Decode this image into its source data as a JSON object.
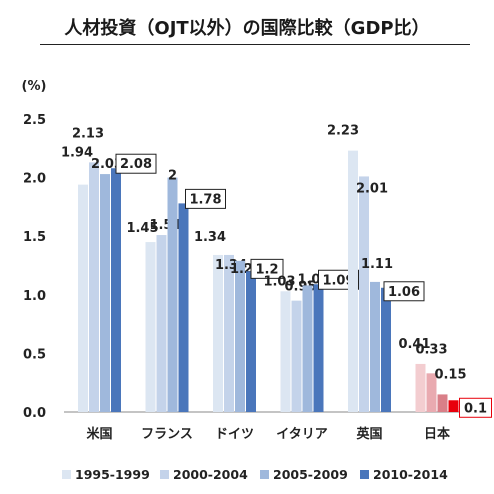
{
  "chart_data": {
    "type": "bar",
    "title": "人材投資（OJT以外）の国際比較（GDP比）",
    "ylabel": "(%)",
    "xlabel": "",
    "ylim": [
      0,
      2.5
    ],
    "yticks": [
      "0.0",
      "0.5",
      "1.0",
      "1.5",
      "2.0",
      "2.5"
    ],
    "grid": false,
    "legend_position": "bottom",
    "categories": [
      "米国",
      "フランス",
      "ドイツ",
      "イタリア",
      "英国",
      "日本"
    ],
    "series": [
      {
        "name": "1995-1999",
        "values": [
          1.94,
          1.45,
          1.34,
          1.03,
          2.23,
          0.41
        ]
      },
      {
        "name": "2000-2004",
        "values": [
          2.13,
          1.51,
          1.34,
          0.95,
          2.01,
          0.33
        ]
      },
      {
        "name": "2005-2009",
        "values": [
          2.03,
          2.0,
          1.29,
          1.08,
          1.11,
          0.15
        ]
      },
      {
        "name": "2010-2014",
        "values": [
          2.08,
          1.78,
          1.2,
          1.09,
          1.06,
          0.1
        ]
      }
    ],
    "labels": [
      [
        "1.94",
        "2.13",
        "2.03",
        "2.08"
      ],
      [
        "1.45",
        "1.51",
        "2",
        "1.78"
      ],
      [
        "1.34",
        "1.34",
        "1.29",
        "1.2"
      ],
      [
        "1.03",
        "0.95",
        "1.08",
        "1.09"
      ],
      [
        "2.23",
        "2.01",
        "1.11",
        "1.06"
      ],
      [
        "0.41",
        "0.33",
        "0.15",
        "0.1"
      ]
    ],
    "colors": {
      "standard": [
        "#dce6f2",
        "#c4d3ea",
        "#9fb8dc",
        "#4a76bb"
      ],
      "highlight": [
        "#f3cdd0",
        "#e9aab0",
        "#d97f88",
        "#e8000b"
      ]
    },
    "highlight_category": "日本"
  }
}
